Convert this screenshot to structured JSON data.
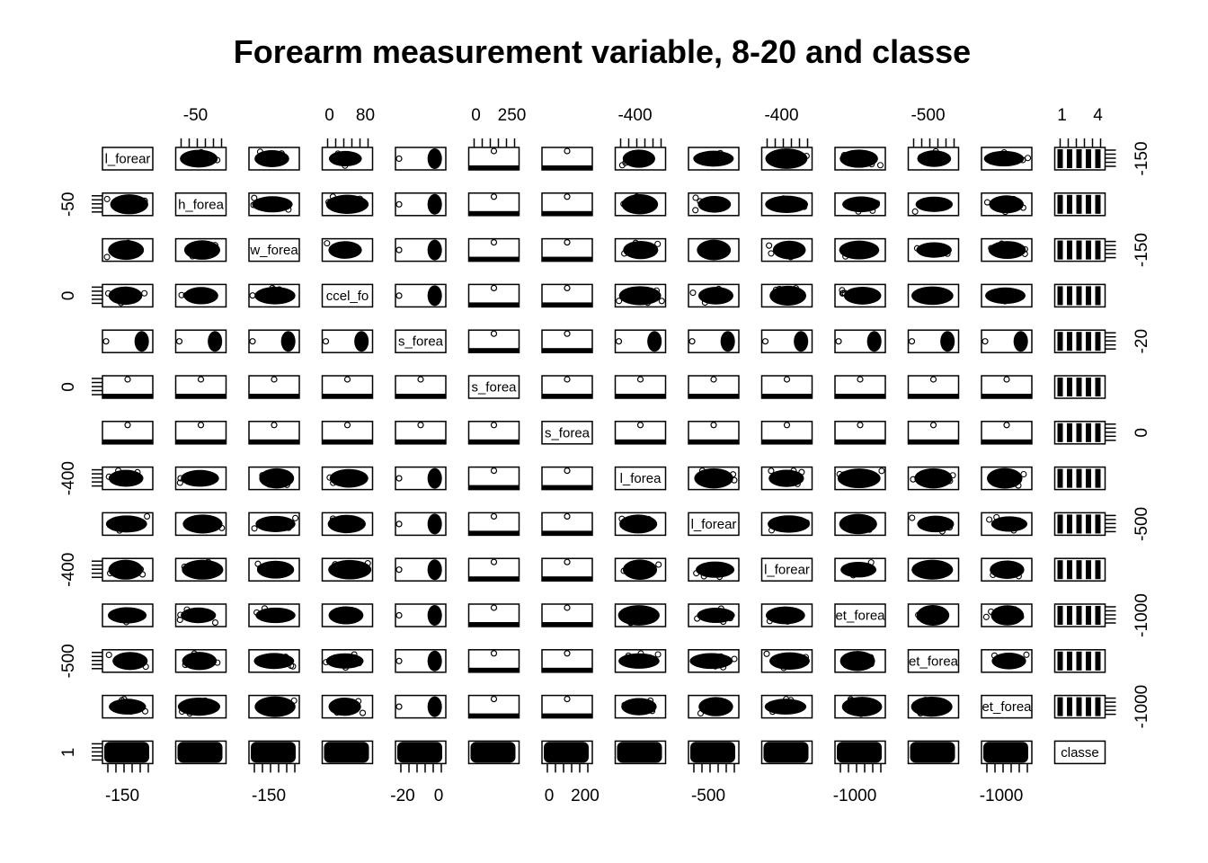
{
  "chart_data": {
    "type": "scatter",
    "title": "Forearm measurement variable, 8-20 and classe",
    "panel_labels": [
      "l_forear",
      "h_forea",
      "w_forea",
      "ccel_fo",
      "s_forea",
      "s_forea",
      "s_forea",
      "l_forea",
      "l_forear",
      "l_forear",
      "et_forea",
      "et_forea",
      "et_forea",
      "classe"
    ],
    "top_axis_labels": [
      {
        "col": 1,
        "text": "-50"
      },
      {
        "col": 3,
        "text": "0"
      },
      {
        "col": 3,
        "text": "80"
      },
      {
        "col": 5,
        "text": "0"
      },
      {
        "col": 5,
        "text": "250"
      },
      {
        "col": 7,
        "text": "-400"
      },
      {
        "col": 9,
        "text": "-400"
      },
      {
        "col": 11,
        "text": "-500"
      },
      {
        "col": 13,
        "text": "1"
      },
      {
        "col": 13,
        "text": "4"
      }
    ],
    "bottom_axis_labels": [
      {
        "col": 0,
        "text": "-150"
      },
      {
        "col": 2,
        "text": "-150"
      },
      {
        "col": 4,
        "text": "-20"
      },
      {
        "col": 4,
        "text": "0"
      },
      {
        "col": 6,
        "text": "0"
      },
      {
        "col": 6,
        "text": "200"
      },
      {
        "col": 8,
        "text": "-500"
      },
      {
        "col": 10,
        "text": "-1000"
      },
      {
        "col": 12,
        "text": "-1000"
      }
    ],
    "left_axis_labels": [
      {
        "row": 1,
        "text": "-50"
      },
      {
        "row": 3,
        "text": "0"
      },
      {
        "row": 5,
        "text": "0"
      },
      {
        "row": 7,
        "text": "-400"
      },
      {
        "row": 9,
        "text": "-400"
      },
      {
        "row": 11,
        "text": "-500"
      },
      {
        "row": 13,
        "text": "1"
      }
    ],
    "right_axis_labels": [
      {
        "row": 0,
        "text": "-150"
      },
      {
        "row": 2,
        "text": "-150"
      },
      {
        "row": 4,
        "text": "-20"
      },
      {
        "row": 6,
        "text": "0"
      },
      {
        "row": 8,
        "text": "-500"
      },
      {
        "row": 10,
        "text": "-1000"
      },
      {
        "row": 12,
        "text": "-1000"
      }
    ],
    "grid": false,
    "legend": "none"
  }
}
